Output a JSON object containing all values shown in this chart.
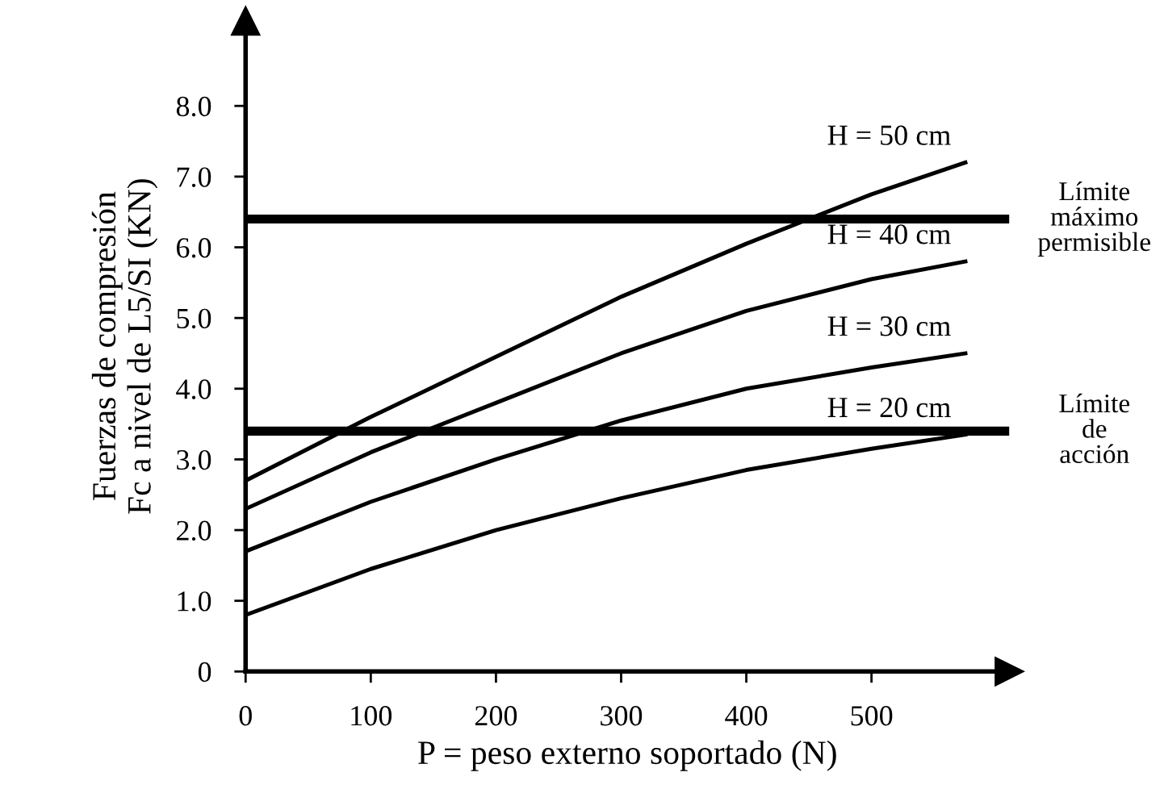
{
  "chart_data": {
    "type": "line",
    "xlabel": "P = peso externo soportado (N)",
    "ylabel": "Fuerzas de compresión\nFc a nivel de L5/SI (KN)",
    "xlim": [
      0,
      610
    ],
    "ylim": [
      0,
      9.2
    ],
    "xticks": [
      0,
      100,
      200,
      300,
      400,
      500
    ],
    "yticks": [
      0,
      {
        "value": 1,
        "label": "1.0"
      },
      {
        "value": 2,
        "label": "2.0"
      },
      {
        "value": 3,
        "label": "3.0"
      },
      {
        "value": 4,
        "label": "4.0"
      },
      {
        "value": 5,
        "label": "5.0"
      },
      {
        "value": 6,
        "label": "6.0"
      },
      {
        "value": 7,
        "label": "7.0"
      },
      {
        "value": 8,
        "label": "8.0"
      }
    ],
    "grid": false,
    "marker": "none",
    "line_style": "solid",
    "series": [
      {
        "name": "H = 50 cm",
        "color": "#000000",
        "x": [
          0,
          100,
          200,
          300,
          400,
          500,
          575
        ],
        "values": [
          2.7,
          3.6,
          4.45,
          5.3,
          6.05,
          6.75,
          7.2
        ]
      },
      {
        "name": "H = 40 cm",
        "color": "#000000",
        "x": [
          0,
          100,
          200,
          300,
          400,
          500,
          575
        ],
        "values": [
          2.3,
          3.1,
          3.8,
          4.5,
          5.1,
          5.55,
          5.8
        ]
      },
      {
        "name": "H = 30 cm",
        "color": "#000000",
        "x": [
          0,
          100,
          200,
          300,
          400,
          500,
          575
        ],
        "values": [
          1.7,
          2.4,
          3.0,
          3.55,
          4.0,
          4.3,
          4.5
        ]
      },
      {
        "name": "H = 20 cm",
        "color": "#000000",
        "x": [
          0,
          100,
          200,
          300,
          400,
          500,
          575
        ],
        "values": [
          0.8,
          1.45,
          2.0,
          2.45,
          2.85,
          3.15,
          3.35
        ]
      }
    ],
    "ref_lines": [
      {
        "axis": "y",
        "value": 6.4,
        "label": "Límite\nmáximo\npermisible",
        "color": "#000000"
      },
      {
        "axis": "y",
        "value": 3.4,
        "label": "Límite\nde\nacción",
        "color": "#000000"
      }
    ]
  }
}
